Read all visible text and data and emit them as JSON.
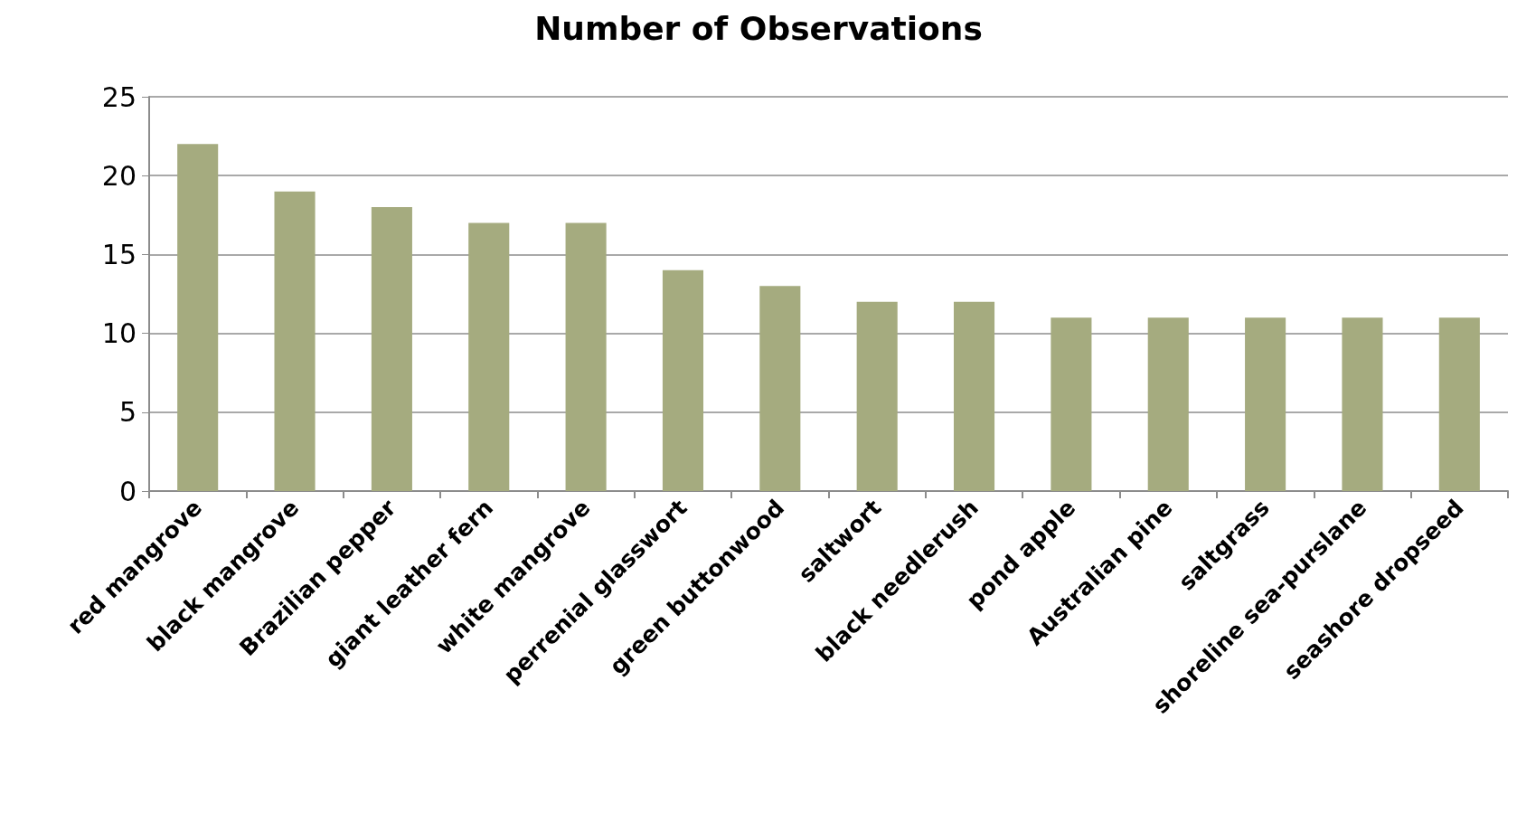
{
  "chart_data": {
    "type": "bar",
    "title": "Number of Observations",
    "categories": [
      "red mangrove",
      "black mangrove",
      "Brazilian pepper",
      "giant leather fern",
      "white mangrove",
      "perrenial glasswort",
      "green buttonwood",
      "saltwort",
      "black needlerush",
      "pond apple",
      "Australian pine",
      "saltgrass",
      "shoreline sea-purslane",
      "seashore dropseed"
    ],
    "values": [
      22,
      19,
      18,
      17,
      17,
      14,
      13,
      12,
      12,
      11,
      11,
      11,
      11,
      11
    ],
    "color": "#a5ab7f",
    "ylim": [
      0,
      25
    ],
    "yticks": [
      0,
      5,
      10,
      15,
      20,
      25
    ],
    "grid": "y"
  }
}
